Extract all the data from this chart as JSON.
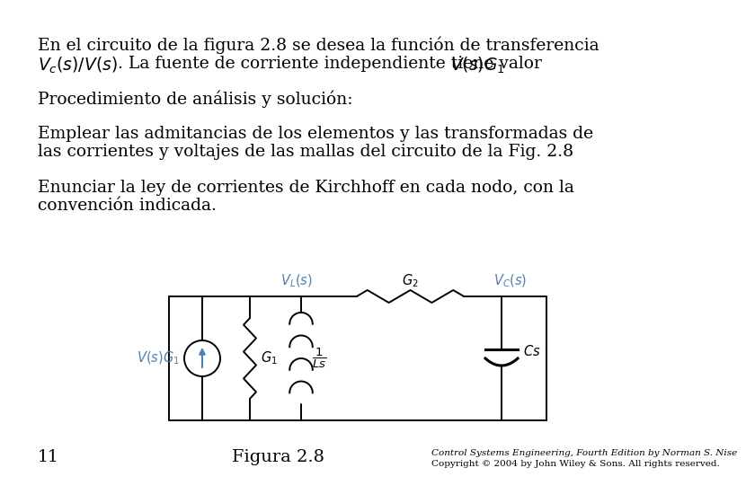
{
  "bg_color": "#ffffff",
  "text_color": "#000000",
  "blue_color": "#4f7faf",
  "line1": "En el circuito de la figura 2.8 se desea la función de transferencia",
  "line2a": "$V_c(s)/V(s)$",
  "line2b": ". La fuente de corriente independiente tiene valor ",
  "line2c": "$V(s)G_1$",
  "line3": "Procedimiento de análisis y solución:",
  "line4": "Emplear las admitancias de los elementos y las transformadas de",
  "line5": "las corrientes y voltajes de las mallas del circuito de la Fig. 2.8",
  "line6": "Enunciar la ley de corrientes de Kirchhoff en cada nodo, con la",
  "line7": "convención indicada.",
  "fig_label": "Figura 2.8",
  "page_num": "11",
  "copyright1": "Control Systems Engineering, Fourth Edition by Norman S. Nise",
  "copyright2": "Copyright © 2004 by John Wiley & Sons. All rights reserved.",
  "fs_main": 13.5,
  "fs_small": 7.5,
  "fs_circuit": 10.5
}
